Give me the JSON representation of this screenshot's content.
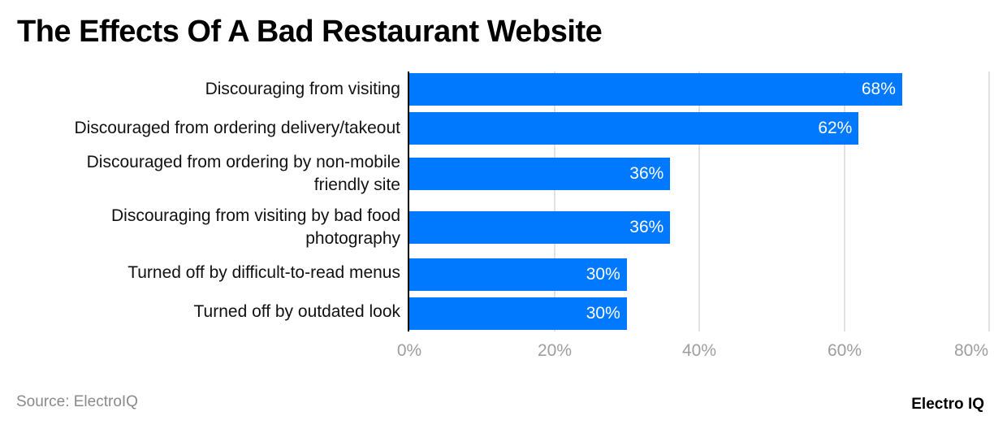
{
  "title": "The Effects Of A Bad Restaurant Website",
  "footer": {
    "source": "Source: ElectroIQ",
    "brand": "Electro IQ"
  },
  "colors": {
    "bar": "#0079ff",
    "grid": "#e2e2e2",
    "tick_text": "#9e9e9e"
  },
  "chart_data": {
    "type": "bar",
    "orientation": "horizontal",
    "title": "The Effects Of A Bad Restaurant Website",
    "xlabel": "",
    "ylabel": "",
    "xlim": [
      0,
      80
    ],
    "grid": true,
    "legend": null,
    "categories": [
      "Discouraging from visiting",
      "Discouraged from ordering delivery/takeout",
      "Discouraged from ordering by non-mobile friendly site",
      "Discouraging from visiting by bad food photography",
      "Turned off by difficult-to-read menus",
      "Turned off by outdated look"
    ],
    "values": [
      68,
      62,
      36,
      36,
      30,
      30
    ],
    "value_labels": [
      "68%",
      "62%",
      "36%",
      "36%",
      "30%",
      "30%"
    ],
    "x_ticks": [
      "0%",
      "20%",
      "40%",
      "60%",
      "80%"
    ]
  }
}
